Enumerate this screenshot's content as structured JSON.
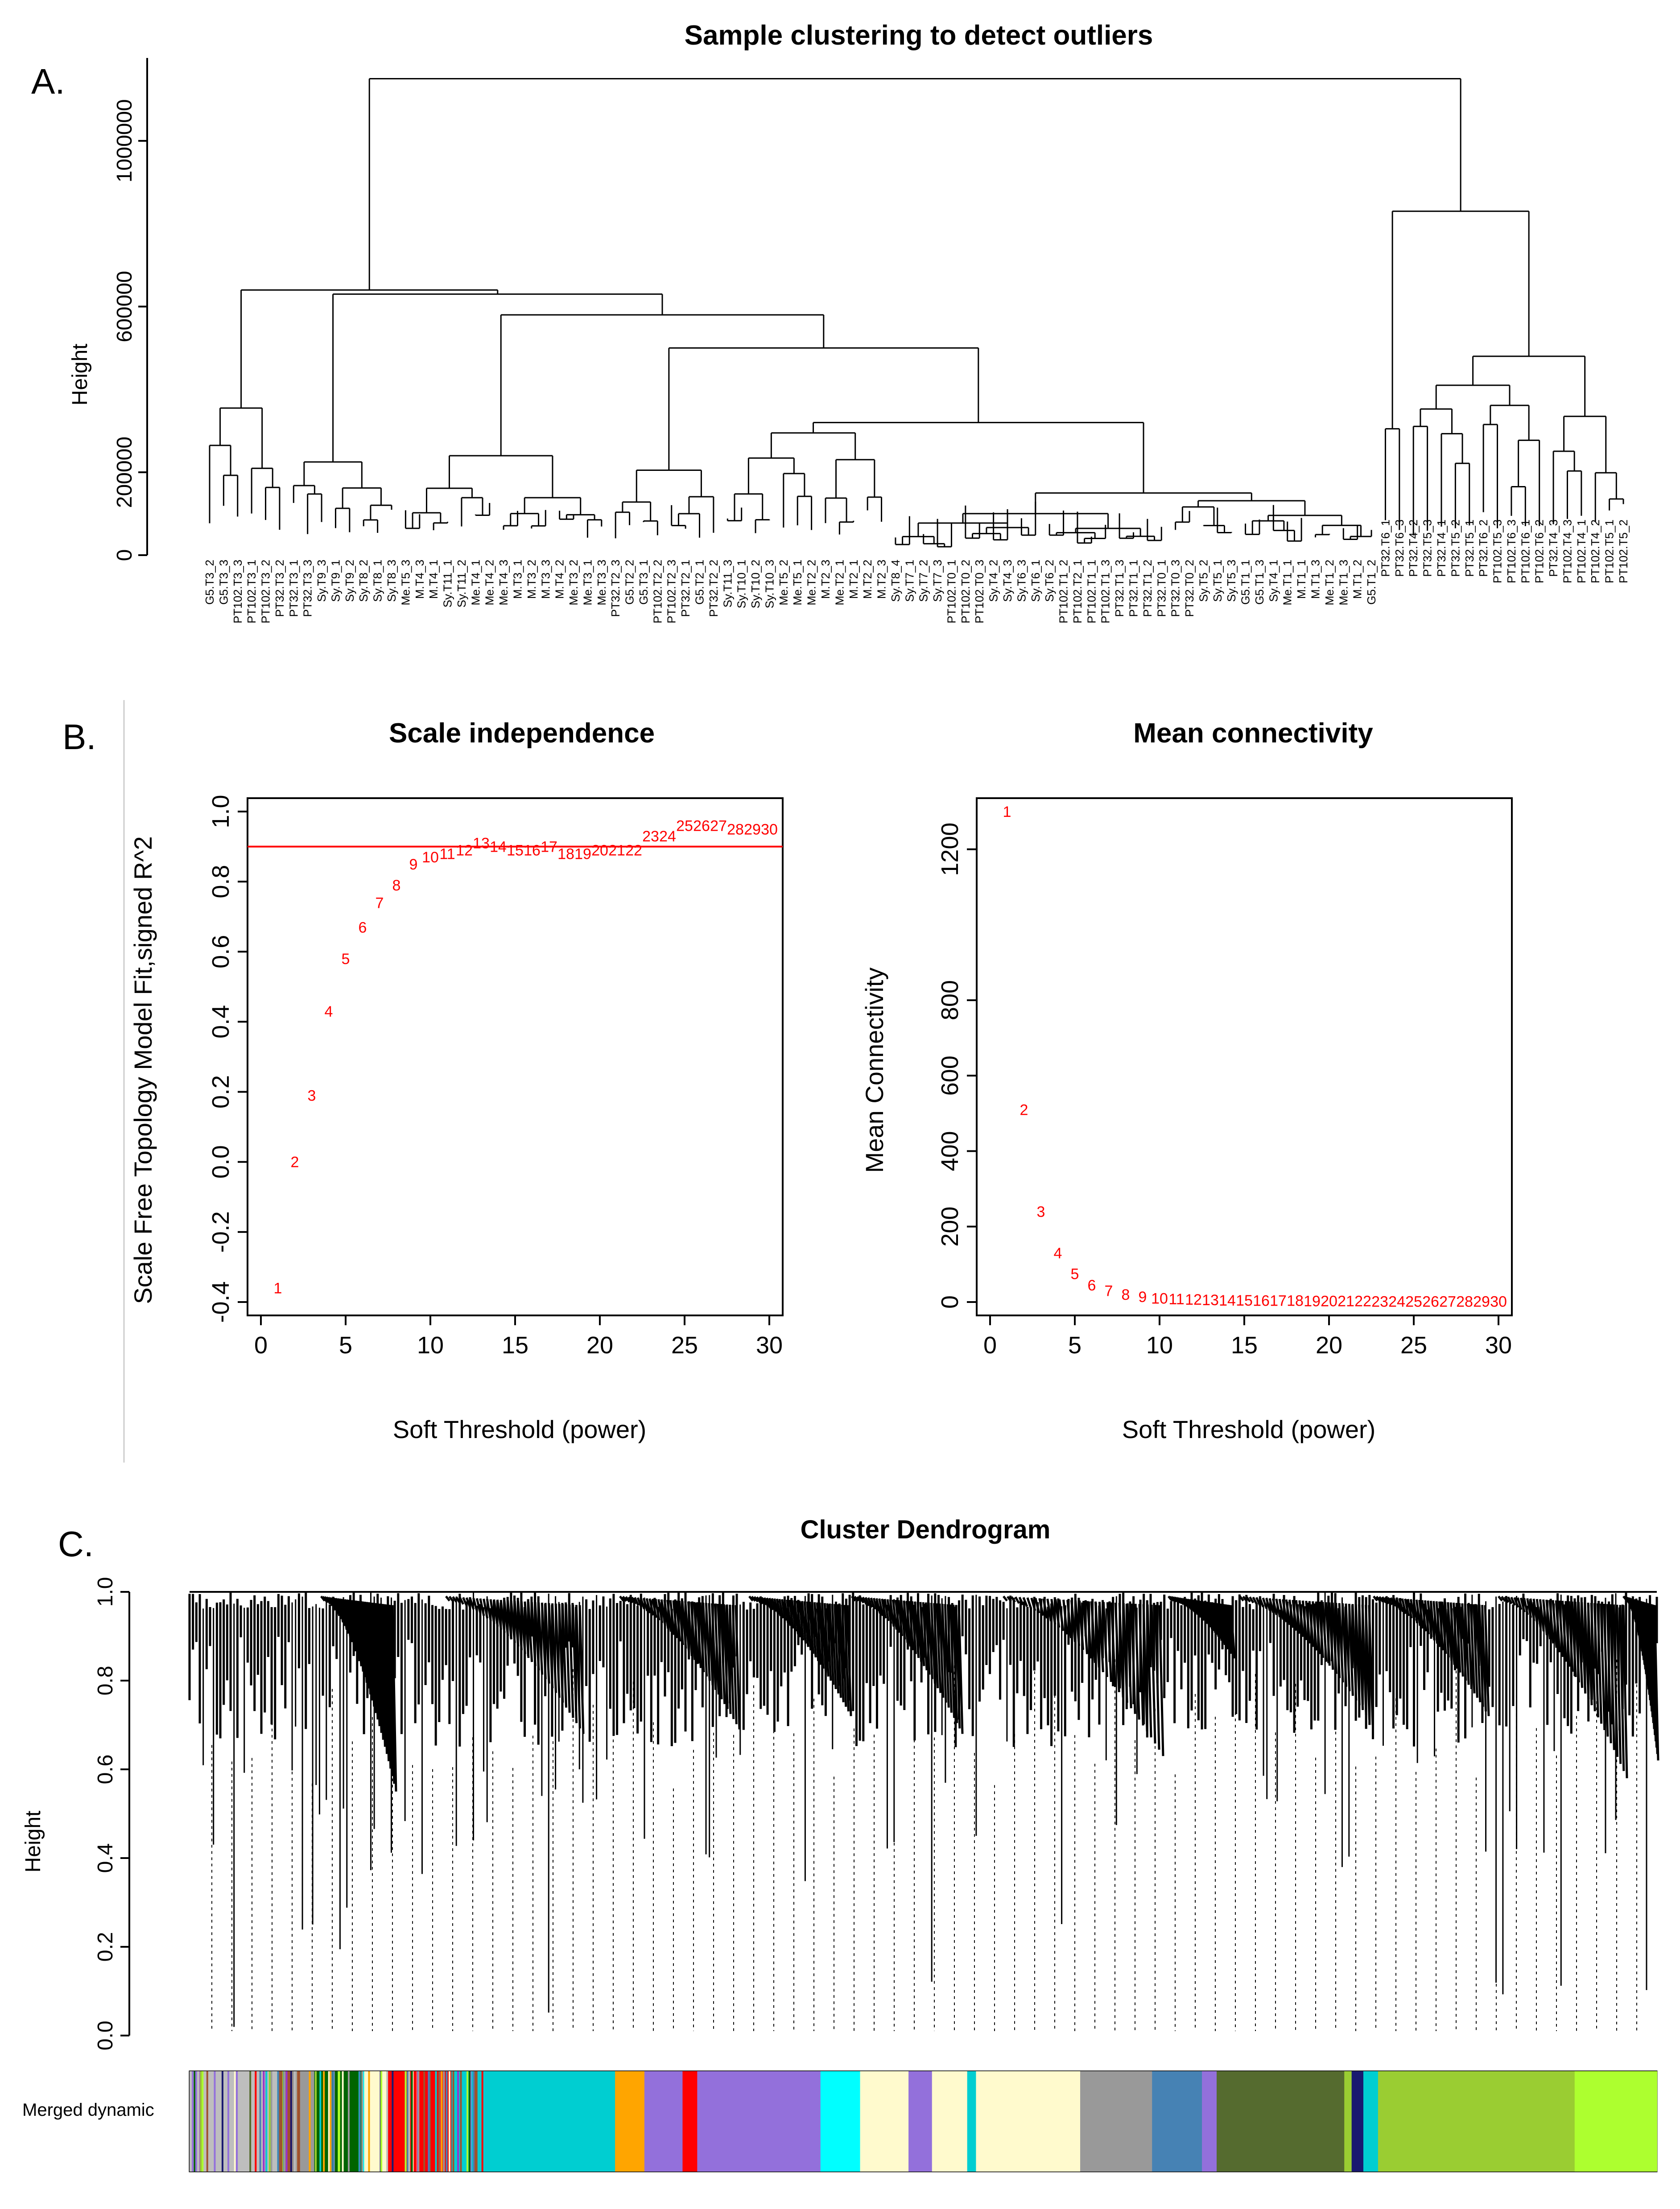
{
  "panel_labels": [
    "A.",
    "B.",
    "C."
  ],
  "colors": {
    "axis": "#000000",
    "point_text": "#ff0000",
    "cutoff_line": "#ff0000"
  },
  "chart_data": [
    {
      "type": "dendrogram",
      "title": "Sample clustering to detect outliers",
      "ylabel": "Height",
      "ylim": [
        0,
        1200000
      ],
      "y_ticks": [
        0,
        200000,
        600000,
        1000000
      ],
      "left_cluster_groups": [
        [
          "G5.T3_2",
          "G5.T3_3",
          "PT102.T3_3",
          "PT102.T3_1",
          "PT102.T3_2",
          "PT32.T3_2"
        ],
        [
          "PT32.T3_1",
          "PT32.T3_3",
          "Sy.T9_3",
          "Sy.T9_1",
          "Sy.T9_2",
          "Sy.T8_2",
          "Sy.T8_1",
          "Sy.T8_3"
        ],
        [
          "Me.T5_3",
          "M.T4_3",
          "M.T4_1",
          "Sy.T11_1",
          "Sy.T11_2",
          "Me.T4_1",
          "Me.T4_2",
          "Me.T4_3",
          "M.T3_1",
          "M.T3_2",
          "M.T3_3",
          "M.T4_2",
          "Me.T3_2",
          "Me.T3_1",
          "Me.T3_3"
        ],
        [
          "PT32.T2_3",
          "G5.T2_2",
          "G5.T3_1",
          "PT102.T2_2",
          "PT102.T2_3",
          "PT32.T2_1",
          "G5.T2_1",
          "PT32.T2_2"
        ],
        [
          "Sy.T11_3",
          "Sy.T10_1",
          "Sy.T10_2",
          "Sy.T10_3",
          "Me.T5_2",
          "Me.T5_1",
          "Me.T2_2",
          "M.T2_3",
          "Me.T2_1",
          "M.T2_1",
          "M.T2_2",
          "M.T2_3"
        ],
        [
          "Sy.T8_4",
          "Sy.T7_1",
          "Sy.T7_2",
          "Sy.T7_3",
          "PT102.T0_1",
          "PT102.T0_2",
          "PT102.T0_3",
          "Sy.T4_2",
          "Sy.T4_3",
          "Sy.T6_3",
          "Sy.T6_1",
          "Sy.T6_2",
          "PT102.T1_2",
          "PT102.T2_1",
          "PT102.T1_1",
          "PT102.T1_3",
          "PT32.T1_3",
          "PT32.T1_1",
          "PT32.T1_2",
          "PT32.T0_1",
          "PT32.T0_3",
          "PT32.T0_2",
          "Sy.T5_2",
          "Sy.T5_1",
          "Sy.T5_3",
          "G5.T1_1",
          "G5.T1_3",
          "Sy.T4_1",
          "Me.T1_1",
          "M.T1_1",
          "M.T1_3",
          "Me.T1_2",
          "Me.T1_3",
          "M.T1_2",
          "G5.T1_2"
        ]
      ],
      "right_cluster_groups": [
        [
          "PT32.T6_1",
          "PT32.T6_3"
        ],
        [
          "PT32.T4_2",
          "PT32.T5_3",
          "PT32.T4_1",
          "PT32.T5_2",
          "PT32.T5_1",
          "PT32.T6_2",
          "PT102.T5_3",
          "PT102.T6_3",
          "PT102.T6_1",
          "PT102.T6_2"
        ],
        [
          "PT32.T4_3",
          "PT102.T4_3",
          "PT102.T4_1",
          "PT102.T4_2",
          "PT102.T5_1",
          "PT102.T5_2"
        ]
      ]
    },
    {
      "type": "scatter",
      "title": "Scale independence",
      "xlabel": "Soft Threshold (power)",
      "ylabel": "Scale Free Topology Model Fit,signed R^2",
      "xlim": [
        0,
        30
      ],
      "ylim": [
        -0.4,
        1.0
      ],
      "x_ticks": [
        0,
        5,
        10,
        15,
        20,
        25,
        30
      ],
      "y_ticks": [
        -0.4,
        -0.2,
        0.0,
        0.2,
        0.4,
        0.6,
        0.8,
        1.0
      ],
      "x": [
        1,
        2,
        3,
        4,
        5,
        6,
        7,
        8,
        9,
        10,
        11,
        12,
        13,
        14,
        15,
        16,
        17,
        18,
        19,
        20,
        21,
        22,
        23,
        24,
        25,
        26,
        27,
        28,
        29,
        30
      ],
      "y": [
        -0.36,
        0.0,
        0.19,
        0.43,
        0.58,
        0.67,
        0.74,
        0.79,
        0.85,
        0.87,
        0.88,
        0.89,
        0.91,
        0.9,
        0.89,
        0.89,
        0.9,
        0.88,
        0.88,
        0.89,
        0.89,
        0.89,
        0.93,
        0.93,
        0.96,
        0.96,
        0.96,
        0.95,
        0.95,
        0.95
      ],
      "hline": 0.9
    },
    {
      "type": "scatter",
      "title": "Mean connectivity",
      "xlabel": "Soft Threshold (power)",
      "ylabel": "Mean Connectivity",
      "xlim": [
        0,
        30
      ],
      "ylim": [
        0,
        1300
      ],
      "x_ticks": [
        0,
        5,
        10,
        15,
        20,
        25,
        30
      ],
      "y_ticks": [
        0,
        200,
        400,
        600,
        800,
        1200
      ],
      "x": [
        1,
        2,
        3,
        4,
        5,
        6,
        7,
        8,
        9,
        10,
        11,
        12,
        13,
        14,
        15,
        16,
        17,
        18,
        19,
        20,
        21,
        22,
        23,
        24,
        25,
        26,
        27,
        28,
        29,
        30
      ],
      "y": [
        1300,
        510,
        240,
        130,
        75,
        45,
        30,
        20,
        14,
        10,
        8,
        7,
        6,
        5,
        5,
        4,
        4,
        4,
        3,
        3,
        3,
        3,
        2,
        2,
        2,
        2,
        2,
        2,
        2,
        2
      ]
    },
    {
      "type": "dendrogram",
      "title": "Cluster Dendrogram",
      "ylabel": "Height",
      "ylim": [
        0.0,
        1.0
      ],
      "y_ticks": [
        0.0,
        0.2,
        0.4,
        0.6,
        0.8,
        1.0
      ],
      "color_bar_label": "Merged dynamic",
      "module_colors": [
        "#bebebe",
        "#a0522d",
        "#006400",
        "#ff0000",
        "#00ced1",
        "#ffa500",
        "#9370db",
        "#00ffff",
        "#fffacd",
        "#9932cc",
        "#999999",
        "#4682b4",
        "#556b2f",
        "#191970",
        "#9acd32",
        "#adff2f"
      ]
    }
  ]
}
